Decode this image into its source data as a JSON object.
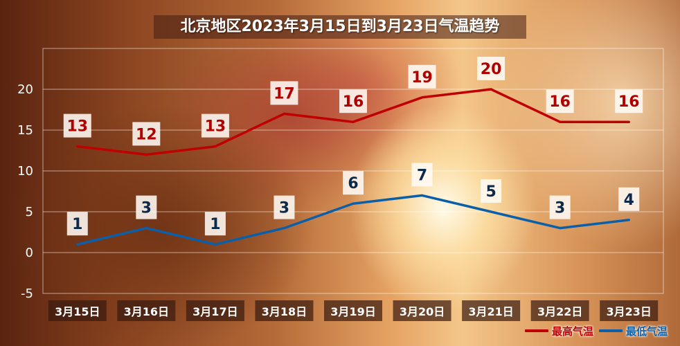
{
  "chart_data": {
    "type": "line",
    "title": "北京地区2023年3月15日到3月23日气温趋势",
    "categories": [
      "3月15日",
      "3月16日",
      "3月17日",
      "3月18日",
      "3月19日",
      "3月20日",
      "3月21日",
      "3月22日",
      "3月23日"
    ],
    "series": [
      {
        "name": "最高气温",
        "values": [
          13,
          12,
          13,
          17,
          16,
          19,
          20,
          16,
          16
        ],
        "color": "#c00000",
        "label_color": "#b00000"
      },
      {
        "name": "最低气温",
        "values": [
          1,
          3,
          1,
          3,
          6,
          7,
          5,
          3,
          4
        ],
        "color": "#0b5fa8",
        "label_color": "#0d2a4a"
      }
    ],
    "ylim": [
      -5,
      25
    ],
    "yticks": [
      -5,
      0,
      5,
      10,
      15,
      20
    ],
    "grid": true,
    "legend": "bottom-right",
    "data_labels": true
  }
}
